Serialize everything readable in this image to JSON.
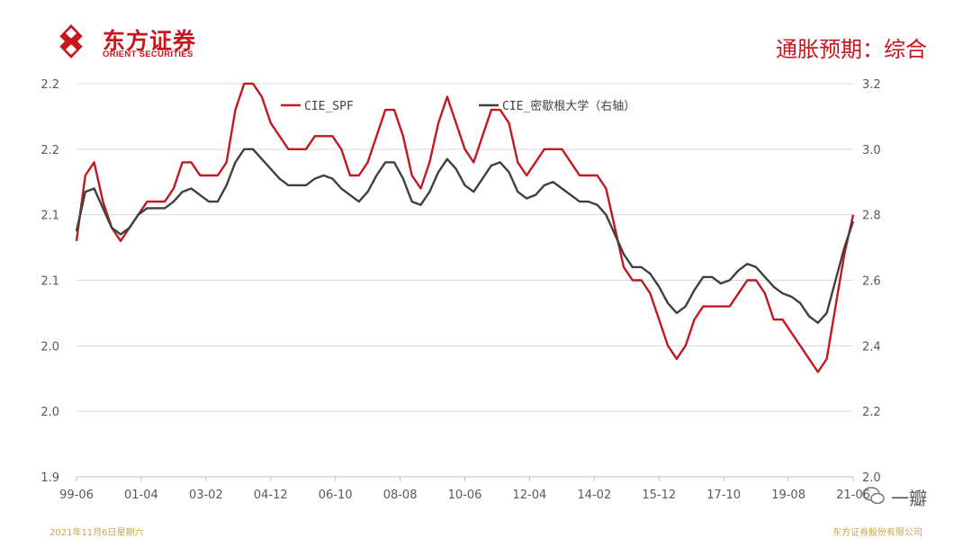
{
  "header": {
    "logo_cn": "东方证券",
    "logo_en": "ORIENT SECURITIES",
    "title": "通胀预期：综合"
  },
  "footer": {
    "date": "2021年11月6日星期六",
    "company": "东方证券股份有限公司"
  },
  "watermark": {
    "text": "一瓣"
  },
  "colors": {
    "brand": "#c8161d",
    "series_spf": "#c0191f",
    "series_mich": "#404040",
    "footer": "#c9a64a"
  },
  "chart_data": {
    "type": "line",
    "title": "",
    "x_tick_labels": [
      "99-06",
      "01-04",
      "03-02",
      "04-12",
      "06-10",
      "08-08",
      "10-06",
      "12-04",
      "14-02",
      "15-12",
      "17-10",
      "19-08",
      "21-06"
    ],
    "left_axis": {
      "ylim": [
        1.9,
        2.2
      ],
      "tick_labels": [
        "1.9",
        "2.0",
        "2.0",
        "2.1",
        "2.1",
        "2.2",
        "2.2"
      ]
    },
    "right_axis": {
      "ylim": [
        2.0,
        3.2
      ],
      "tick_labels": [
        "2.0",
        "2.2",
        "2.4",
        "2.6",
        "2.8",
        "3.0",
        "3.2"
      ]
    },
    "grid": "horizontal",
    "legend_position": "top",
    "series": [
      {
        "name": "CIE_SPF",
        "axis": "left",
        "values": [
          2.08,
          2.13,
          2.14,
          2.11,
          2.09,
          2.08,
          2.09,
          2.1,
          2.11,
          2.11,
          2.11,
          2.12,
          2.14,
          2.14,
          2.13,
          2.13,
          2.13,
          2.14,
          2.18,
          2.2,
          2.2,
          2.19,
          2.17,
          2.16,
          2.15,
          2.15,
          2.15,
          2.16,
          2.16,
          2.16,
          2.15,
          2.13,
          2.13,
          2.14,
          2.16,
          2.18,
          2.18,
          2.16,
          2.13,
          2.12,
          2.14,
          2.17,
          2.19,
          2.17,
          2.15,
          2.14,
          2.16,
          2.18,
          2.18,
          2.17,
          2.14,
          2.13,
          2.14,
          2.15,
          2.15,
          2.15,
          2.14,
          2.13,
          2.13,
          2.13,
          2.12,
          2.09,
          2.06,
          2.05,
          2.05,
          2.04,
          2.02,
          2.0,
          1.99,
          2.0,
          2.02,
          2.03,
          2.03,
          2.03,
          2.03,
          2.04,
          2.05,
          2.05,
          2.04,
          2.02,
          2.02,
          2.01,
          2.0,
          1.99,
          1.98,
          1.99,
          2.03,
          2.07,
          2.1
        ]
      },
      {
        "name": "CIE_密歇根大学（右轴）",
        "axis": "right",
        "values": [
          2.75,
          2.87,
          2.88,
          2.82,
          2.76,
          2.74,
          2.76,
          2.8,
          2.82,
          2.82,
          2.82,
          2.84,
          2.87,
          2.88,
          2.86,
          2.84,
          2.84,
          2.89,
          2.96,
          3.0,
          3.0,
          2.97,
          2.94,
          2.91,
          2.89,
          2.89,
          2.89,
          2.91,
          2.92,
          2.91,
          2.88,
          2.86,
          2.84,
          2.87,
          2.92,
          2.96,
          2.96,
          2.91,
          2.84,
          2.83,
          2.87,
          2.93,
          2.97,
          2.94,
          2.89,
          2.87,
          2.91,
          2.95,
          2.96,
          2.93,
          2.87,
          2.85,
          2.86,
          2.89,
          2.9,
          2.88,
          2.86,
          2.84,
          2.84,
          2.83,
          2.8,
          2.74,
          2.68,
          2.64,
          2.64,
          2.62,
          2.58,
          2.53,
          2.5,
          2.52,
          2.57,
          2.61,
          2.61,
          2.59,
          2.6,
          2.63,
          2.65,
          2.64,
          2.61,
          2.58,
          2.56,
          2.55,
          2.53,
          2.49,
          2.47,
          2.5,
          2.6,
          2.7,
          2.78
        ]
      }
    ]
  }
}
